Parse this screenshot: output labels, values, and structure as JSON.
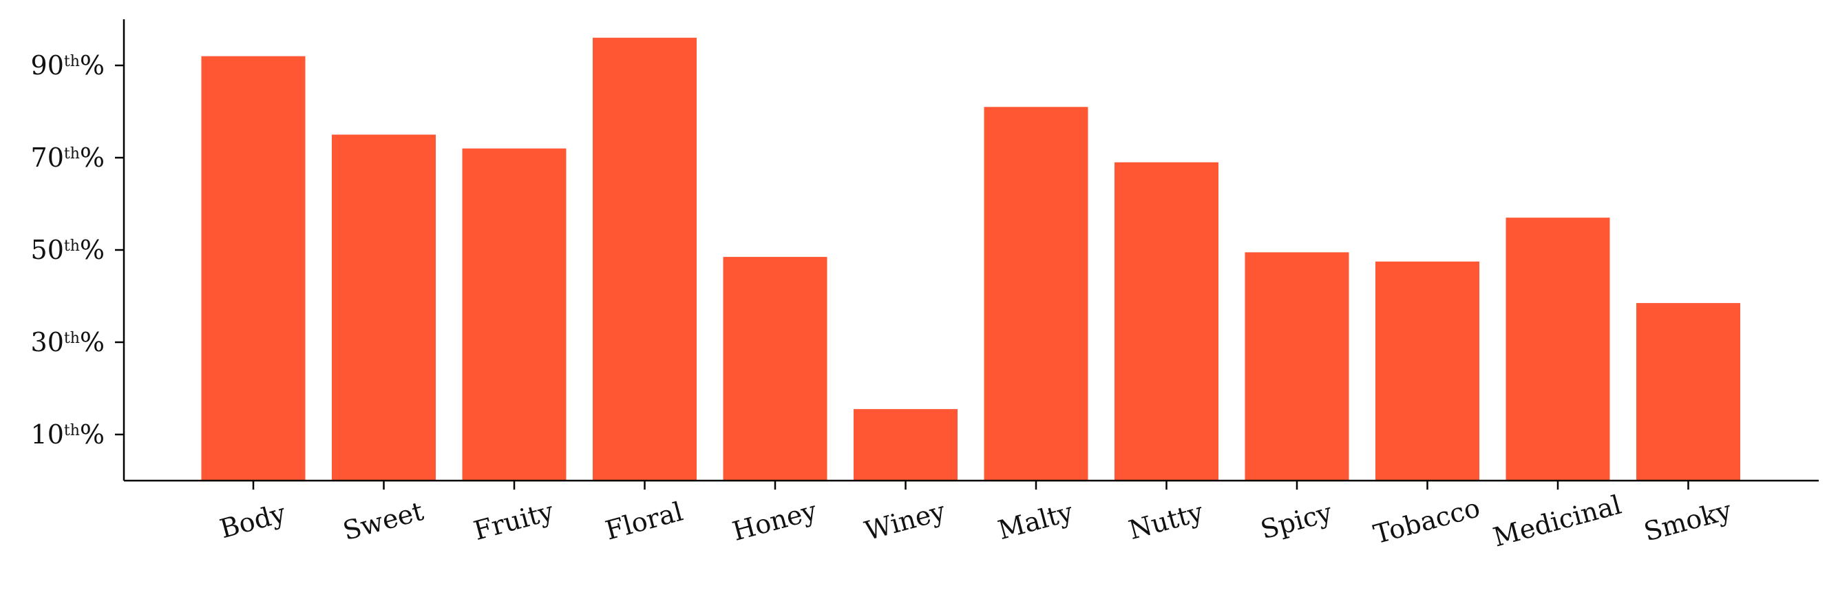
{
  "chart_data": {
    "type": "bar",
    "title": "",
    "xlabel": "",
    "ylabel": "",
    "categories": [
      "Body",
      "Sweet",
      "Fruity",
      "Floral",
      "Honey",
      "Winey",
      "Malty",
      "Nutty",
      "Spicy",
      "Tobacco",
      "Medicinal",
      "Smoky"
    ],
    "values": [
      92,
      75,
      72,
      96,
      48.5,
      15.5,
      81,
      69,
      49.5,
      47.5,
      57,
      38.5
    ],
    "ylim": [
      0,
      100
    ],
    "yticks": [
      10,
      30,
      50,
      70,
      90
    ],
    "ytick_labels": [
      {
        "value": "10",
        "suffix_sup": "th",
        "suffix": "%"
      },
      {
        "value": "30",
        "suffix_sup": "th",
        "suffix": "%"
      },
      {
        "value": "50",
        "suffix_sup": "th",
        "suffix": "%"
      },
      {
        "value": "70",
        "suffix_sup": "th",
        "suffix": "%"
      },
      {
        "value": "90",
        "suffix_sup": "th",
        "suffix": "%"
      }
    ],
    "bar_color": "#FF5733",
    "grid": false,
    "legend": "none"
  }
}
